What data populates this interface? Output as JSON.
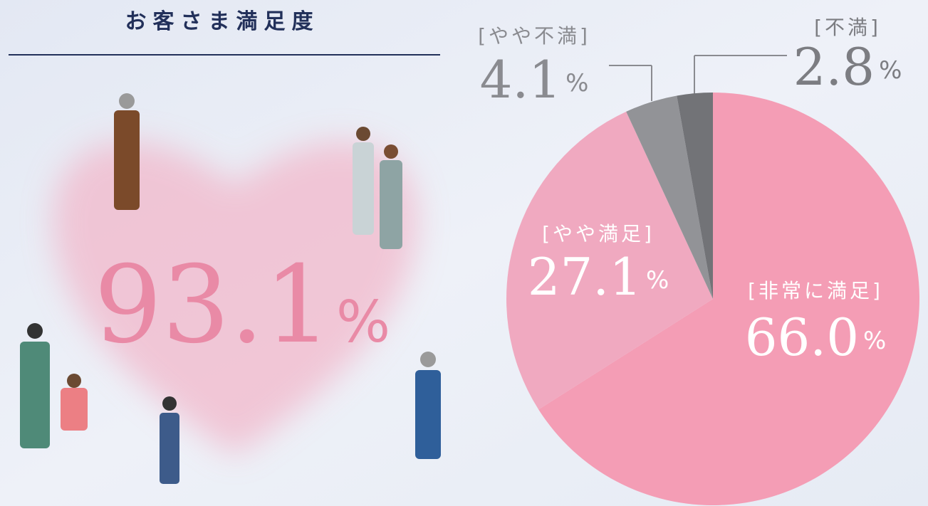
{
  "chart_data": {
    "type": "pie",
    "title": "お客さま満足度",
    "summary": {
      "value": 93.1,
      "label": "93.1%"
    },
    "categories": [
      "[非常に満足]",
      "[やや満足]",
      "[やや不満]",
      "[不満]"
    ],
    "values": [
      66.0,
      27.1,
      4.1,
      2.8
    ],
    "value_labels": [
      "66.0%",
      "27.1%",
      "4.1%",
      "2.8%"
    ],
    "colors": [
      "#f49db5",
      "#f0a9c0",
      "#929397",
      "#727377"
    ]
  }
}
